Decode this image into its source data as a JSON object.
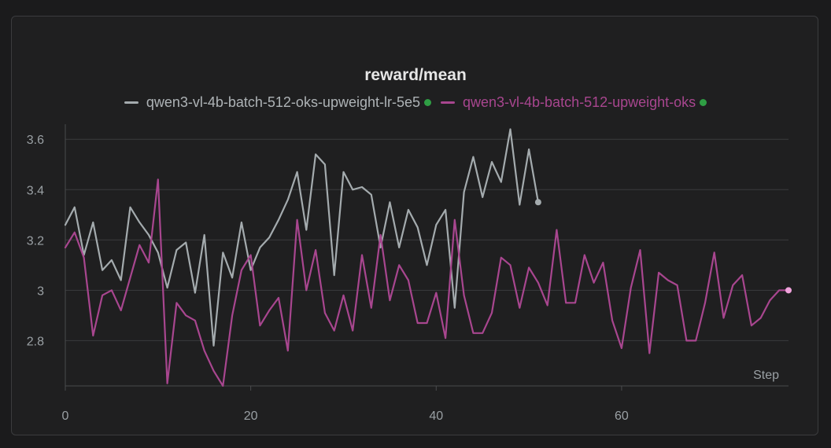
{
  "chart_data": {
    "type": "line",
    "title": "reward/mean",
    "xlabel": "Step",
    "ylabel": "",
    "xlim": [
      0,
      78
    ],
    "ylim": [
      2.62,
      3.66
    ],
    "xticks": [
      0,
      20,
      40,
      60
    ],
    "yticks": [
      2.8,
      3,
      3.2,
      3.4,
      3.6
    ],
    "ytick_labels": [
      "2.8",
      "3",
      "3.2",
      "3.4",
      "3.6"
    ],
    "grid": true,
    "legend_position": "top-center",
    "series": [
      {
        "name": "qwen3-vl-4b-batch-512-oks-upweight-lr-5e5",
        "color": "#a4abae",
        "status_color": "#2f9e44",
        "x": [
          0,
          1,
          2,
          3,
          4,
          5,
          6,
          7,
          8,
          9,
          10,
          11,
          12,
          13,
          14,
          15,
          16,
          17,
          18,
          19,
          20,
          21,
          22,
          23,
          24,
          25,
          26,
          27,
          28,
          29,
          30,
          31,
          32,
          33,
          34,
          35,
          36,
          37,
          38,
          39,
          40,
          41,
          42,
          43,
          44,
          45,
          46,
          47,
          48,
          49,
          50,
          51
        ],
        "values": [
          3.26,
          3.33,
          3.14,
          3.27,
          3.08,
          3.12,
          3.04,
          3.33,
          3.27,
          3.22,
          3.15,
          3.01,
          3.16,
          3.19,
          2.99,
          3.22,
          2.78,
          3.15,
          3.05,
          3.27,
          3.08,
          3.17,
          3.21,
          3.28,
          3.36,
          3.47,
          3.24,
          3.54,
          3.5,
          3.06,
          3.47,
          3.4,
          3.41,
          3.38,
          3.17,
          3.35,
          3.17,
          3.32,
          3.25,
          3.1,
          3.26,
          3.32,
          2.93,
          3.39,
          3.53,
          3.37,
          3.51,
          3.43,
          3.64,
          3.34,
          3.56,
          3.35
        ]
      },
      {
        "name": "qwen3-vl-4b-batch-512-upweight-oks",
        "color": "#a8468f",
        "status_color": "#2f9e44",
        "x": [
          0,
          1,
          2,
          3,
          4,
          5,
          6,
          7,
          8,
          9,
          10,
          11,
          12,
          13,
          14,
          15,
          16,
          17,
          18,
          19,
          20,
          21,
          22,
          23,
          24,
          25,
          26,
          27,
          28,
          29,
          30,
          31,
          32,
          33,
          34,
          35,
          36,
          37,
          38,
          39,
          40,
          41,
          42,
          43,
          44,
          45,
          46,
          47,
          48,
          49,
          50,
          51,
          52,
          53,
          54,
          55,
          56,
          57,
          58,
          59,
          60,
          61,
          62,
          63,
          64,
          65,
          66,
          67,
          68,
          69,
          70,
          71,
          72,
          73,
          74,
          75,
          76,
          77,
          78
        ],
        "values": [
          3.17,
          3.23,
          3.13,
          2.82,
          2.98,
          3.0,
          2.92,
          3.05,
          3.18,
          3.11,
          3.44,
          2.63,
          2.95,
          2.9,
          2.88,
          2.76,
          2.68,
          2.62,
          2.9,
          3.08,
          3.14,
          2.86,
          2.92,
          2.97,
          2.76,
          3.28,
          3.0,
          3.16,
          2.91,
          2.84,
          2.98,
          2.84,
          3.14,
          2.93,
          3.22,
          2.96,
          3.1,
          3.04,
          2.87,
          2.87,
          2.99,
          2.81,
          3.28,
          2.98,
          2.83,
          2.83,
          2.91,
          3.13,
          3.1,
          2.93,
          3.09,
          3.03,
          2.94,
          3.24,
          2.95,
          2.95,
          3.14,
          3.03,
          3.11,
          2.88,
          2.77,
          3.01,
          3.16,
          2.75,
          3.07,
          3.04,
          3.02,
          2.8,
          2.8,
          2.95,
          3.15,
          2.89,
          3.02,
          3.06,
          2.86,
          2.89,
          2.96,
          3.0,
          3.0
        ]
      }
    ]
  }
}
